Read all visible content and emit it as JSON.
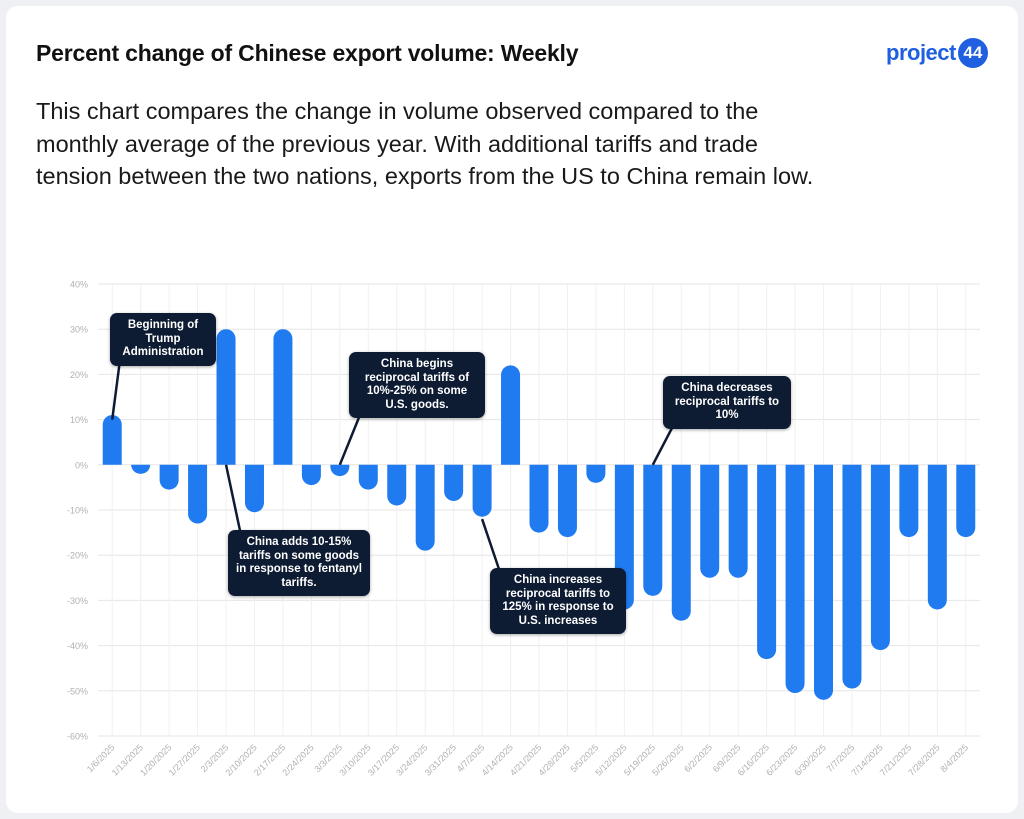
{
  "header": {
    "title": "Percent change of Chinese export volume: Weekly",
    "logo_text": "project",
    "logo_badge": "44",
    "description": "This chart compares the change in volume observed compared to the monthly average of the previous year. With additional tariffs and trade tension between the two nations, exports from the US to China remain low."
  },
  "colors": {
    "bar": "#1f7bef",
    "callout_bg": "#0d1b33",
    "grid": "#e6e6e6",
    "axis_text": "#b0b0b0"
  },
  "chart_data": {
    "type": "bar",
    "title": "",
    "xlabel": "",
    "ylabel": "",
    "ylim": [
      -60,
      40
    ],
    "yticks": [
      "-60%",
      "-50%",
      "-40%",
      "-30%",
      "-20%",
      "-10%",
      "0%",
      "10%",
      "20%",
      "30%",
      "40%"
    ],
    "grid": true,
    "categories": [
      "1/6/2025",
      "1/13/2025",
      "1/20/2025",
      "1/27/2025",
      "2/3/2025",
      "2/10/2025",
      "2/17/2025",
      "2/24/2025",
      "3/3/2025",
      "3/10/2025",
      "3/17/2025",
      "3/24/2025",
      "3/31/2025",
      "4/7/2025",
      "4/14/2025",
      "4/21/2025",
      "4/28/2025",
      "5/5/2025",
      "5/12/2025",
      "5/19/2025",
      "5/26/2025",
      "6/2/2025",
      "6/9/2025",
      "6/16/2025",
      "6/23/2025",
      "6/30/2025",
      "7/7/2025",
      "7/14/2025",
      "7/21/2025",
      "7/28/2025",
      "8/4/2025"
    ],
    "values": [
      11,
      -2,
      -5.5,
      -13,
      30,
      -10.5,
      30,
      -4.5,
      -2.5,
      -5.5,
      -9,
      -19,
      -8,
      -11.5,
      22,
      -15,
      -16,
      -4,
      -32,
      -29,
      -34.5,
      -25,
      -25,
      -43,
      -50.5,
      -52,
      -49.5,
      -41,
      -16,
      -32,
      -16
    ],
    "annotations": [
      {
        "text": "Beginning of Trump Administration",
        "anchor_index": 0,
        "anchor_value": 10
      },
      {
        "text": "China adds 10-15% tariffs on some goods in response to fentanyl tariffs.",
        "anchor_index": 4,
        "anchor_value": 0
      },
      {
        "text": "China begins reciprocal tariffs of 10%-25% on some U.S. goods.",
        "anchor_index": 8,
        "anchor_value": 0
      },
      {
        "text": "China increases reciprocal tariffs to 125% in response to U.S. increases",
        "anchor_index": 13,
        "anchor_value": -12
      },
      {
        "text": "China decreases reciprocal tariffs to 10%",
        "anchor_index": 19,
        "anchor_value": 0
      }
    ]
  }
}
